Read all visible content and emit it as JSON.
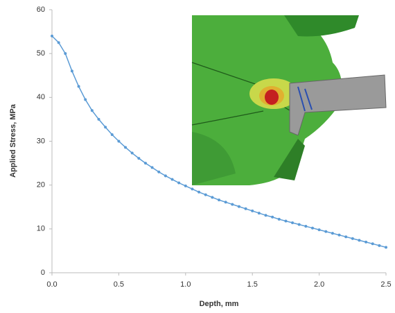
{
  "chart_data": {
    "type": "line",
    "x_label": "Depth, mm",
    "y_label": "Applied Stress, MPa",
    "x": [
      0,
      0.05,
      0.1,
      0.15,
      0.2,
      0.25,
      0.3,
      0.35,
      0.4,
      0.45,
      0.5,
      0.55,
      0.6,
      0.65,
      0.7,
      0.75,
      0.8,
      0.85,
      0.9,
      0.95,
      1.0,
      1.05,
      1.1,
      1.15,
      1.2,
      1.25,
      1.3,
      1.35,
      1.4,
      1.45,
      1.5,
      1.55,
      1.6,
      1.65,
      1.7,
      1.75,
      1.8,
      1.85,
      1.9,
      1.95,
      2.0,
      2.05,
      2.1,
      2.15,
      2.2,
      2.25,
      2.3,
      2.35,
      2.4,
      2.45,
      2.5
    ],
    "values": [
      54,
      52.5,
      50,
      46,
      42.5,
      39.5,
      37,
      35,
      33.2,
      31.5,
      30,
      28.6,
      27.3,
      26.1,
      25,
      24,
      23,
      22.1,
      21.3,
      20.5,
      19.8,
      19.1,
      18.4,
      17.8,
      17.2,
      16.6,
      16.1,
      15.6,
      15.1,
      14.6,
      14.1,
      13.6,
      13.1,
      12.7,
      12.2,
      11.8,
      11.4,
      11,
      10.6,
      10.2,
      9.8,
      9.4,
      9,
      8.6,
      8.2,
      7.8,
      7.4,
      7,
      6.6,
      6.2,
      5.8
    ],
    "color": "#5b9bd5",
    "xlim": [
      0,
      2.5
    ],
    "xticks": [
      {
        "value": 0,
        "label": "0.0"
      },
      0.5,
      {
        "value": 1,
        "label": "1.0"
      },
      1.5,
      {
        "value": 2,
        "label": "2.0"
      },
      2.5
    ],
    "ylim": [
      0,
      60
    ],
    "yticks": [
      0,
      10,
      20,
      30,
      40,
      50,
      60
    ]
  }
}
